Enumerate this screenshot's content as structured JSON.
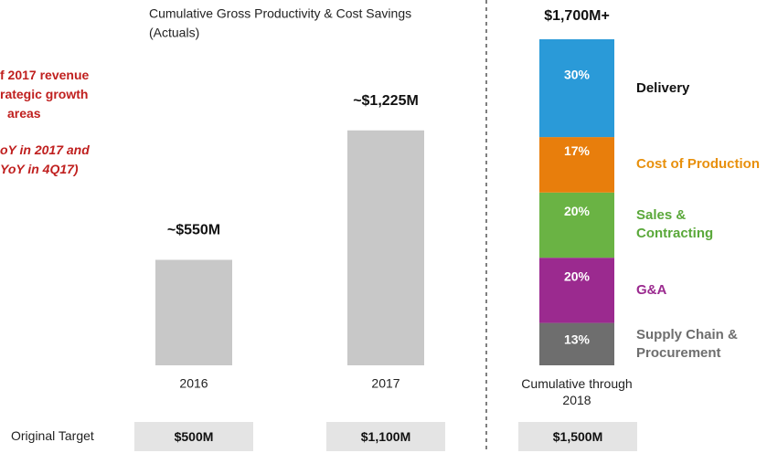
{
  "chart_data": [
    {
      "type": "bar",
      "title": "Cumulative Gross Productivity & Cost Savings",
      "subtitle": "(Actuals)",
      "categories": [
        "2016",
        "2017"
      ],
      "values": [
        550,
        1225
      ],
      "value_labels": [
        "~$550M",
        "~$1,225M"
      ],
      "color": "#c8c8c8"
    },
    {
      "type": "stacked_bar",
      "categories": [
        "Cumulative through 2018"
      ],
      "total": 1700,
      "total_label": "$1,700M+",
      "series": [
        {
          "name": "Delivery",
          "color": "#2a9ad8",
          "text_color": "#111111",
          "values": [
            30
          ],
          "value_labels": [
            "30%"
          ]
        },
        {
          "name": "Cost of Production",
          "color": "#e87e0c",
          "text_color": "#e8900c",
          "values": [
            17
          ],
          "value_labels": [
            "17%"
          ]
        },
        {
          "name": "Sales & Contracting",
          "color": "#6ab344",
          "text_color": "#5aa83a",
          "values": [
            20
          ],
          "value_labels": [
            "20%"
          ]
        },
        {
          "name": "G&A",
          "color": "#9b2a8f",
          "text_color": "#9b2a8f",
          "values": [
            20
          ],
          "value_labels": [
            "20%"
          ]
        },
        {
          "name": "Supply Chain & Procurement",
          "color": "#6e6e6e",
          "text_color": "#6e6e6e",
          "values": [
            13
          ],
          "value_labels": [
            "13%"
          ]
        }
      ]
    }
  ],
  "annotations": [
    "f 2017 revenue",
    "rategic growth",
    "areas",
    "oY in 2017 and",
    "YoY in 4Q17)"
  ],
  "targets": {
    "label": "Original Target",
    "values": [
      "$500M",
      "$1,100M",
      "$1,500M"
    ]
  }
}
